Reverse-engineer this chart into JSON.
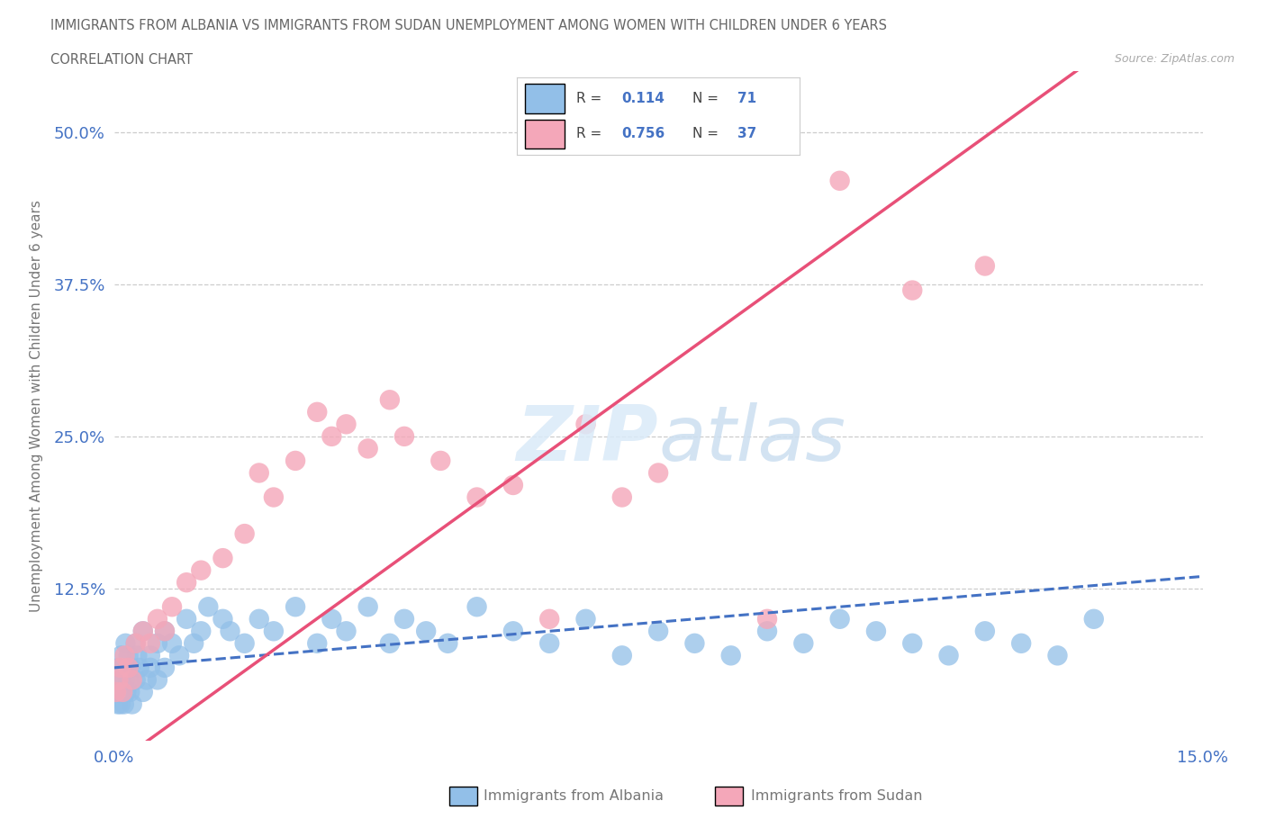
{
  "title_line1": "IMMIGRANTS FROM ALBANIA VS IMMIGRANTS FROM SUDAN UNEMPLOYMENT AMONG WOMEN WITH CHILDREN UNDER 6 YEARS",
  "title_line2": "CORRELATION CHART",
  "source": "Source: ZipAtlas.com",
  "ylabel": "Unemployment Among Women with Children Under 6 years",
  "xlabel_albania": "Immigrants from Albania",
  "xlabel_sudan": "Immigrants from Sudan",
  "xlim": [
    0.0,
    0.15
  ],
  "ylim": [
    0.0,
    0.55
  ],
  "ytick_vals": [
    0.0,
    0.125,
    0.25,
    0.375,
    0.5
  ],
  "ytick_labels": [
    "",
    "12.5%",
    "25.0%",
    "37.5%",
    "50.0%"
  ],
  "xtick_vals": [
    0.0,
    0.15
  ],
  "xtick_labels": [
    "0.0%",
    "15.0%"
  ],
  "R_albania": 0.114,
  "N_albania": 71,
  "R_sudan": 0.756,
  "N_sudan": 37,
  "color_albania": "#92bfe8",
  "color_sudan": "#f4a7b9",
  "line_color_albania": "#4472c4",
  "line_color_sudan": "#e85078",
  "grid_color": "#cccccc",
  "title_color": "#666666",
  "source_color": "#aaaaaa",
  "axis_label_color": "#777777",
  "tick_color": "#4472c4",
  "legend_border_color": "#cccccc",
  "albania_x": [
    0.0003,
    0.0005,
    0.0006,
    0.0007,
    0.0008,
    0.0009,
    0.001,
    0.001,
    0.0012,
    0.0013,
    0.0014,
    0.0015,
    0.0016,
    0.0017,
    0.0018,
    0.002,
    0.002,
    0.0022,
    0.0023,
    0.0025,
    0.003,
    0.003,
    0.0032,
    0.0035,
    0.004,
    0.004,
    0.0045,
    0.005,
    0.005,
    0.006,
    0.006,
    0.007,
    0.007,
    0.008,
    0.009,
    0.01,
    0.011,
    0.012,
    0.013,
    0.015,
    0.016,
    0.018,
    0.02,
    0.022,
    0.025,
    0.028,
    0.03,
    0.032,
    0.035,
    0.038,
    0.04,
    0.043,
    0.046,
    0.05,
    0.055,
    0.06,
    0.065,
    0.07,
    0.075,
    0.08,
    0.085,
    0.09,
    0.095,
    0.1,
    0.105,
    0.11,
    0.115,
    0.12,
    0.125,
    0.13,
    0.135
  ],
  "albania_y": [
    0.04,
    0.03,
    0.05,
    0.06,
    0.04,
    0.03,
    0.05,
    0.07,
    0.04,
    0.06,
    0.03,
    0.05,
    0.08,
    0.04,
    0.06,
    0.05,
    0.07,
    0.04,
    0.06,
    0.03,
    0.08,
    0.05,
    0.07,
    0.06,
    0.04,
    0.09,
    0.05,
    0.07,
    0.06,
    0.08,
    0.05,
    0.09,
    0.06,
    0.08,
    0.07,
    0.1,
    0.08,
    0.09,
    0.11,
    0.1,
    0.09,
    0.08,
    0.1,
    0.09,
    0.11,
    0.08,
    0.1,
    0.09,
    0.11,
    0.08,
    0.1,
    0.09,
    0.08,
    0.11,
    0.09,
    0.08,
    0.1,
    0.07,
    0.09,
    0.08,
    0.07,
    0.09,
    0.08,
    0.1,
    0.09,
    0.08,
    0.07,
    0.09,
    0.08,
    0.07,
    0.1
  ],
  "sudan_x": [
    0.0003,
    0.0006,
    0.0009,
    0.0012,
    0.0015,
    0.002,
    0.0025,
    0.003,
    0.004,
    0.005,
    0.006,
    0.007,
    0.008,
    0.01,
    0.012,
    0.015,
    0.018,
    0.02,
    0.022,
    0.025,
    0.028,
    0.03,
    0.032,
    0.035,
    0.038,
    0.04,
    0.045,
    0.05,
    0.055,
    0.06,
    0.065,
    0.07,
    0.075,
    0.09,
    0.1,
    0.11,
    0.12
  ],
  "sudan_y": [
    0.04,
    0.05,
    0.06,
    0.04,
    0.07,
    0.06,
    0.05,
    0.08,
    0.09,
    0.08,
    0.1,
    0.09,
    0.11,
    0.13,
    0.14,
    0.15,
    0.17,
    0.22,
    0.2,
    0.23,
    0.27,
    0.25,
    0.26,
    0.24,
    0.28,
    0.25,
    0.23,
    0.2,
    0.21,
    0.1,
    0.26,
    0.2,
    0.22,
    0.1,
    0.46,
    0.37,
    0.39
  ]
}
